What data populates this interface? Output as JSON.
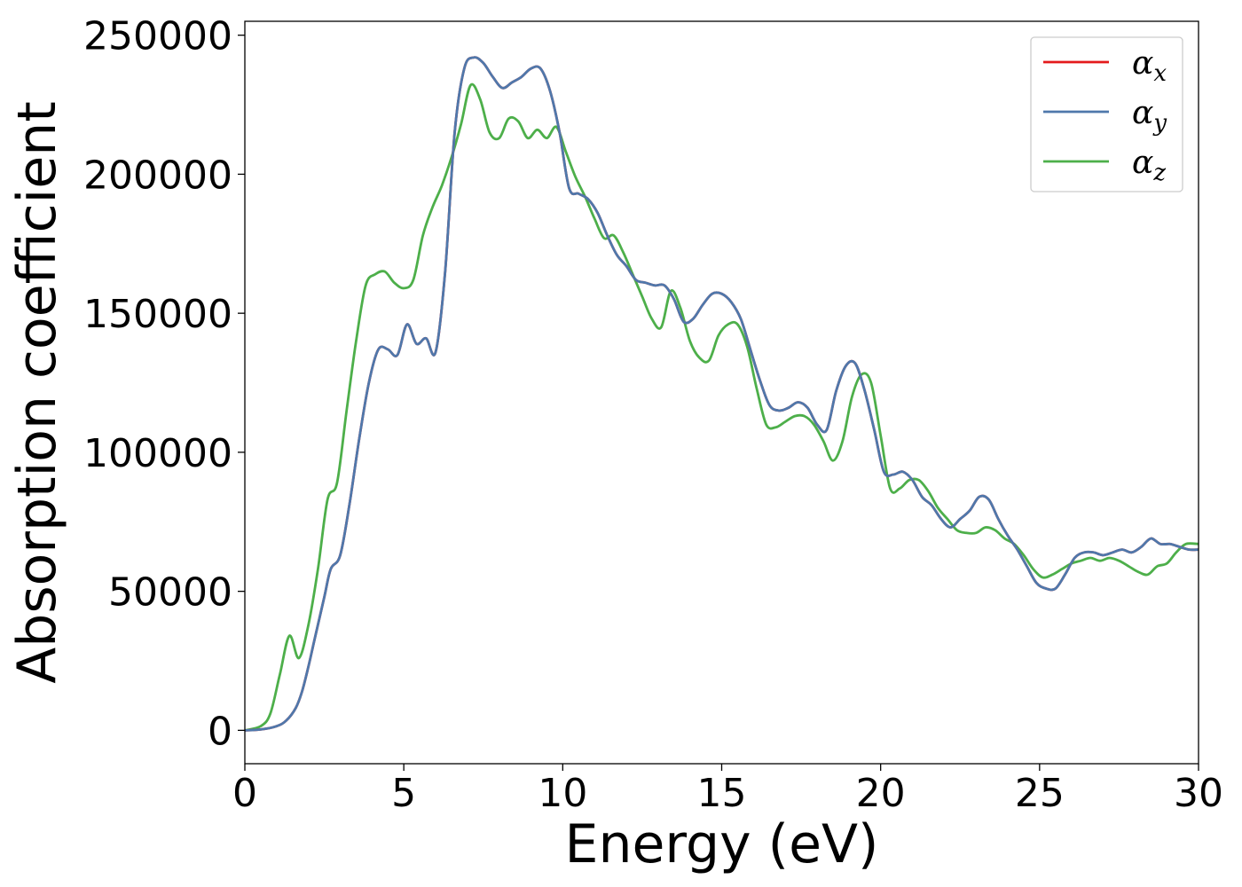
{
  "chart_data": {
    "type": "line",
    "xlabel": "Energy (eV)",
    "ylabel": "Absorption coefficient",
    "xlim": [
      0,
      30
    ],
    "ylim": [
      -12000,
      255000
    ],
    "xticks": [
      0,
      5,
      10,
      15,
      20,
      25,
      30
    ],
    "yticks": [
      0,
      50000,
      100000,
      150000,
      200000,
      250000
    ],
    "grid": false,
    "legend_position": "top-right",
    "series": [
      {
        "name": "α",
        "subscript": "x",
        "color": "#e41a1c",
        "x": [
          0,
          0.5,
          1,
          1.3,
          1.6,
          1.8,
          2,
          2.2,
          2.5,
          2.7,
          3,
          3.3,
          3.6,
          3.9,
          4.2,
          4.5,
          4.8,
          5.1,
          5.4,
          5.7,
          6,
          6.3,
          6.6,
          6.9,
          7.2,
          7.5,
          7.8,
          8.1,
          8.4,
          8.7,
          9,
          9.3,
          9.6,
          9.9,
          10.2,
          10.5,
          10.8,
          11.1,
          11.4,
          11.7,
          12,
          12.3,
          12.6,
          12.9,
          13.2,
          13.5,
          13.8,
          14.1,
          14.4,
          14.7,
          15,
          15.3,
          15.6,
          15.9,
          16.2,
          16.5,
          16.8,
          17.1,
          17.4,
          17.7,
          18,
          18.3,
          18.6,
          18.9,
          19.2,
          19.5,
          19.8,
          20.1,
          20.4,
          20.7,
          21,
          21.3,
          21.6,
          21.9,
          22.2,
          22.5,
          22.8,
          23.1,
          23.4,
          23.7,
          24,
          24.3,
          24.6,
          24.9,
          25.2,
          25.5,
          25.8,
          26.1,
          26.4,
          26.7,
          27,
          27.3,
          27.6,
          27.9,
          28.2,
          28.5,
          28.8,
          29.1,
          29.4,
          29.7,
          30
        ],
        "values": [
          0,
          300,
          1500,
          3500,
          8000,
          14000,
          23000,
          33000,
          48000,
          58000,
          63000,
          82000,
          105000,
          125000,
          137000,
          137000,
          135000,
          146000,
          139000,
          141000,
          136000,
          165000,
          215000,
          238000,
          242000,
          240000,
          235000,
          231000,
          233000,
          235000,
          238000,
          238000,
          230000,
          215000,
          195000,
          193000,
          191000,
          186000,
          178000,
          171000,
          167000,
          162000,
          161000,
          160000,
          160000,
          155000,
          147000,
          148000,
          153000,
          157000,
          157000,
          154000,
          148000,
          137000,
          126000,
          117000,
          115000,
          116000,
          118000,
          116000,
          110000,
          108000,
          122000,
          131000,
          132000,
          122000,
          108000,
          93000,
          92000,
          93000,
          90000,
          84000,
          81000,
          76000,
          73000,
          76000,
          79000,
          84000,
          83000,
          76000,
          70000,
          65000,
          59000,
          53000,
          51000,
          51000,
          56000,
          62000,
          64000,
          64000,
          63000,
          64000,
          65000,
          64000,
          66000,
          69000,
          67000,
          67000,
          66000,
          65000,
          65000
        ]
      },
      {
        "name": "α",
        "subscript": "y",
        "color": "#4f78ab",
        "x": [
          0,
          0.5,
          1,
          1.3,
          1.6,
          1.8,
          2,
          2.2,
          2.5,
          2.7,
          3,
          3.3,
          3.6,
          3.9,
          4.2,
          4.5,
          4.8,
          5.1,
          5.4,
          5.7,
          6,
          6.3,
          6.6,
          6.9,
          7.2,
          7.5,
          7.8,
          8.1,
          8.4,
          8.7,
          9,
          9.3,
          9.6,
          9.9,
          10.2,
          10.5,
          10.8,
          11.1,
          11.4,
          11.7,
          12,
          12.3,
          12.6,
          12.9,
          13.2,
          13.5,
          13.8,
          14.1,
          14.4,
          14.7,
          15,
          15.3,
          15.6,
          15.9,
          16.2,
          16.5,
          16.8,
          17.1,
          17.4,
          17.7,
          18,
          18.3,
          18.6,
          18.9,
          19.2,
          19.5,
          19.8,
          20.1,
          20.4,
          20.7,
          21,
          21.3,
          21.6,
          21.9,
          22.2,
          22.5,
          22.8,
          23.1,
          23.4,
          23.7,
          24,
          24.3,
          24.6,
          24.9,
          25.2,
          25.5,
          25.8,
          26.1,
          26.4,
          26.7,
          27,
          27.3,
          27.6,
          27.9,
          28.2,
          28.5,
          28.8,
          29.1,
          29.4,
          29.7,
          30
        ],
        "values": [
          0,
          300,
          1500,
          3500,
          8000,
          14000,
          23000,
          33000,
          48000,
          58000,
          63000,
          82000,
          105000,
          125000,
          137000,
          137000,
          135000,
          146000,
          139000,
          141000,
          136000,
          165000,
          215000,
          238000,
          242000,
          240000,
          235000,
          231000,
          233000,
          235000,
          238000,
          238000,
          230000,
          215000,
          195000,
          193000,
          191000,
          186000,
          178000,
          171000,
          167000,
          162000,
          161000,
          160000,
          160000,
          155000,
          147000,
          148000,
          153000,
          157000,
          157000,
          154000,
          148000,
          137000,
          126000,
          117000,
          115000,
          116000,
          118000,
          116000,
          110000,
          108000,
          122000,
          131000,
          132000,
          122000,
          108000,
          93000,
          92000,
          93000,
          90000,
          84000,
          81000,
          76000,
          73000,
          76000,
          79000,
          84000,
          83000,
          76000,
          70000,
          65000,
          59000,
          53000,
          51000,
          51000,
          56000,
          62000,
          64000,
          64000,
          63000,
          64000,
          65000,
          64000,
          66000,
          69000,
          67000,
          67000,
          66000,
          65000,
          65000
        ]
      },
      {
        "name": "α",
        "subscript": "z",
        "color": "#4daf4a",
        "x": [
          0,
          0.5,
          0.8,
          1.1,
          1.4,
          1.7,
          2,
          2.3,
          2.6,
          2.9,
          3.2,
          3.5,
          3.8,
          4.1,
          4.4,
          4.7,
          5,
          5.3,
          5.6,
          5.9,
          6.2,
          6.5,
          6.8,
          7.1,
          7.4,
          7.7,
          8,
          8.3,
          8.6,
          8.9,
          9.2,
          9.5,
          9.8,
          10.1,
          10.4,
          10.7,
          11,
          11.3,
          11.6,
          11.9,
          12.2,
          12.5,
          12.8,
          13.1,
          13.4,
          13.7,
          14,
          14.3,
          14.6,
          14.9,
          15.2,
          15.5,
          15.8,
          16.1,
          16.4,
          16.7,
          17,
          17.3,
          17.6,
          17.9,
          18.2,
          18.5,
          18.8,
          19.1,
          19.4,
          19.7,
          20,
          20.3,
          20.6,
          20.9,
          21.2,
          21.5,
          21.8,
          22.1,
          22.4,
          22.7,
          23,
          23.3,
          23.6,
          23.9,
          24.2,
          24.5,
          24.8,
          25.1,
          25.4,
          25.7,
          26,
          26.3,
          26.6,
          26.9,
          27.2,
          27.5,
          27.8,
          28.1,
          28.4,
          28.7,
          29,
          29.3,
          29.6,
          30
        ],
        "values": [
          0,
          1500,
          6000,
          20000,
          34000,
          26000,
          38000,
          58000,
          83000,
          89000,
          115000,
          140000,
          160000,
          164000,
          165000,
          161000,
          159000,
          162000,
          178000,
          188000,
          196000,
          206000,
          218000,
          232000,
          227000,
          215000,
          213000,
          220000,
          219000,
          213000,
          216000,
          213000,
          217000,
          208000,
          199000,
          192000,
          184000,
          177000,
          178000,
          172000,
          164000,
          156000,
          148000,
          145000,
          158000,
          152000,
          140000,
          134000,
          133000,
          142000,
          146000,
          146000,
          138000,
          123000,
          110000,
          109000,
          111000,
          113000,
          113000,
          110000,
          104000,
          97000,
          104000,
          120000,
          128000,
          125000,
          106000,
          87000,
          87000,
          90000,
          90000,
          86000,
          80000,
          76000,
          72000,
          71000,
          71000,
          73000,
          72000,
          69000,
          67000,
          63000,
          58000,
          55000,
          56000,
          58000,
          60000,
          61000,
          62000,
          61000,
          62000,
          61000,
          59000,
          57000,
          56000,
          59000,
          60000,
          64000,
          67000,
          67000
        ]
      }
    ]
  }
}
